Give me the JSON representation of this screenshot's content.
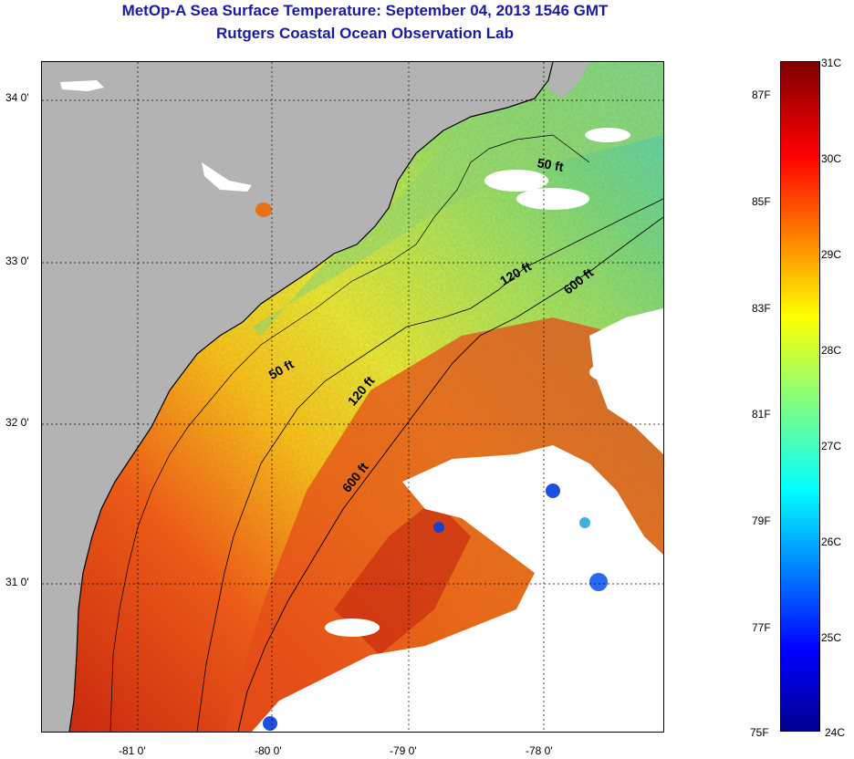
{
  "title": {
    "line1": "MetOp-A Sea Surface Temperature:  September 04, 2013 1546 GMT",
    "line2": "Rutgers Coastal Ocean Observation Lab"
  },
  "map": {
    "lat_labels": [
      "34 0'",
      "33 0'",
      "32 0'",
      "31 0'"
    ],
    "lon_labels": [
      "-81 0'",
      "-80 0'",
      "-79 0'",
      "-78 0'"
    ],
    "contour_labels": [
      "50 ft",
      "120 ft",
      "600 ft",
      "50 ft",
      "120 ft",
      "600 ft"
    ],
    "colors": {
      "land": "#b3b3b3",
      "cloud": "#ffffff",
      "warm": "#e8401a",
      "cool": "#74e07a"
    }
  },
  "colorbar": {
    "celsius_labels": [
      "31C",
      "30C",
      "29C",
      "28C",
      "27C",
      "26C",
      "25C",
      "24C"
    ],
    "fahrenheit_labels": [
      "87F",
      "85F",
      "83F",
      "81F",
      "79F",
      "77F",
      "75F"
    ]
  }
}
